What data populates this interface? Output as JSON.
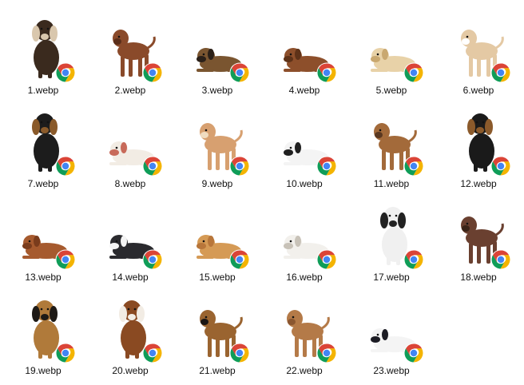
{
  "files": [
    {
      "name": "1.webp",
      "icon": "basset-hound-sitting",
      "colors": {
        "fur": "#3a2a1e",
        "accent": "#d9c7ad"
      }
    },
    {
      "name": "2.webp",
      "icon": "chow-chow-standing",
      "colors": {
        "fur": "#8a4a2a",
        "accent": "#5a2e1a"
      }
    },
    {
      "name": "3.webp",
      "icon": "shepherd-lying",
      "colors": {
        "fur": "#7a5530",
        "accent": "#2b2018"
      }
    },
    {
      "name": "4.webp",
      "icon": "cocker-spaniel-lying",
      "colors": {
        "fur": "#8d4f2b",
        "accent": "#5e3218"
      }
    },
    {
      "name": "5.webp",
      "icon": "golden-puppy-lying",
      "colors": {
        "fur": "#e8d2a8",
        "accent": "#c9a870"
      }
    },
    {
      "name": "6.webp",
      "icon": "chihuahua-standing",
      "colors": {
        "fur": "#e4c9a4",
        "accent": "#ffffff"
      }
    },
    {
      "name": "7.webp",
      "icon": "rottweiler-sitting",
      "colors": {
        "fur": "#1c1c1c",
        "accent": "#8a5a2a"
      }
    },
    {
      "name": "8.webp",
      "icon": "bulldog-lying",
      "colors": {
        "fur": "#f2ece4",
        "accent": "#c86a5a"
      }
    },
    {
      "name": "9.webp",
      "icon": "chihuahua-long-hair-standing",
      "colors": {
        "fur": "#d7a070",
        "accent": "#f0dcc0"
      }
    },
    {
      "name": "10.webp",
      "icon": "dalmatian-lying",
      "colors": {
        "fur": "#f4f4f4",
        "accent": "#202020"
      }
    },
    {
      "name": "11.webp",
      "icon": "terrier-begging",
      "colors": {
        "fur": "#a36a3a",
        "accent": "#5a3820"
      }
    },
    {
      "name": "12.webp",
      "icon": "rottweiler-puppy-sitting",
      "colors": {
        "fur": "#1a1a1a",
        "accent": "#8b5a2b"
      }
    },
    {
      "name": "13.webp",
      "icon": "cocker-spaniel-lying",
      "colors": {
        "fur": "#a65a2e",
        "accent": "#7a3c1c"
      }
    },
    {
      "name": "14.webp",
      "icon": "mastiff-lying",
      "colors": {
        "fur": "#2a2a2e",
        "accent": "#f4f4f4"
      }
    },
    {
      "name": "15.webp",
      "icon": "golden-retriever-lying",
      "colors": {
        "fur": "#d59a55",
        "accent": "#b8763a"
      }
    },
    {
      "name": "16.webp",
      "icon": "white-dog-lying",
      "colors": {
        "fur": "#f2f0ec",
        "accent": "#c8c2b8"
      }
    },
    {
      "name": "17.webp",
      "icon": "setter-sitting",
      "colors": {
        "fur": "#f0f0f0",
        "accent": "#222222"
      }
    },
    {
      "name": "18.webp",
      "icon": "chihuahua-standing",
      "colors": {
        "fur": "#6a4030",
        "accent": "#3a2418"
      }
    },
    {
      "name": "19.webp",
      "icon": "german-shepherd-sitting",
      "colors": {
        "fur": "#b07a3a",
        "accent": "#1e1a16"
      }
    },
    {
      "name": "20.webp",
      "icon": "basset-hound-sitting",
      "colors": {
        "fur": "#8a4a22",
        "accent": "#f2ece4"
      }
    },
    {
      "name": "21.webp",
      "icon": "german-shepherd-standing",
      "colors": {
        "fur": "#9a6430",
        "accent": "#1a1614"
      }
    },
    {
      "name": "22.webp",
      "icon": "shar-pei-standing",
      "colors": {
        "fur": "#b47a48",
        "accent": "#8a5630"
      }
    },
    {
      "name": "23.webp",
      "icon": "papillon-lying",
      "colors": {
        "fur": "#f4f4f4",
        "accent": "#1c1c24"
      }
    }
  ],
  "file_type_icon": "chrome-icon"
}
